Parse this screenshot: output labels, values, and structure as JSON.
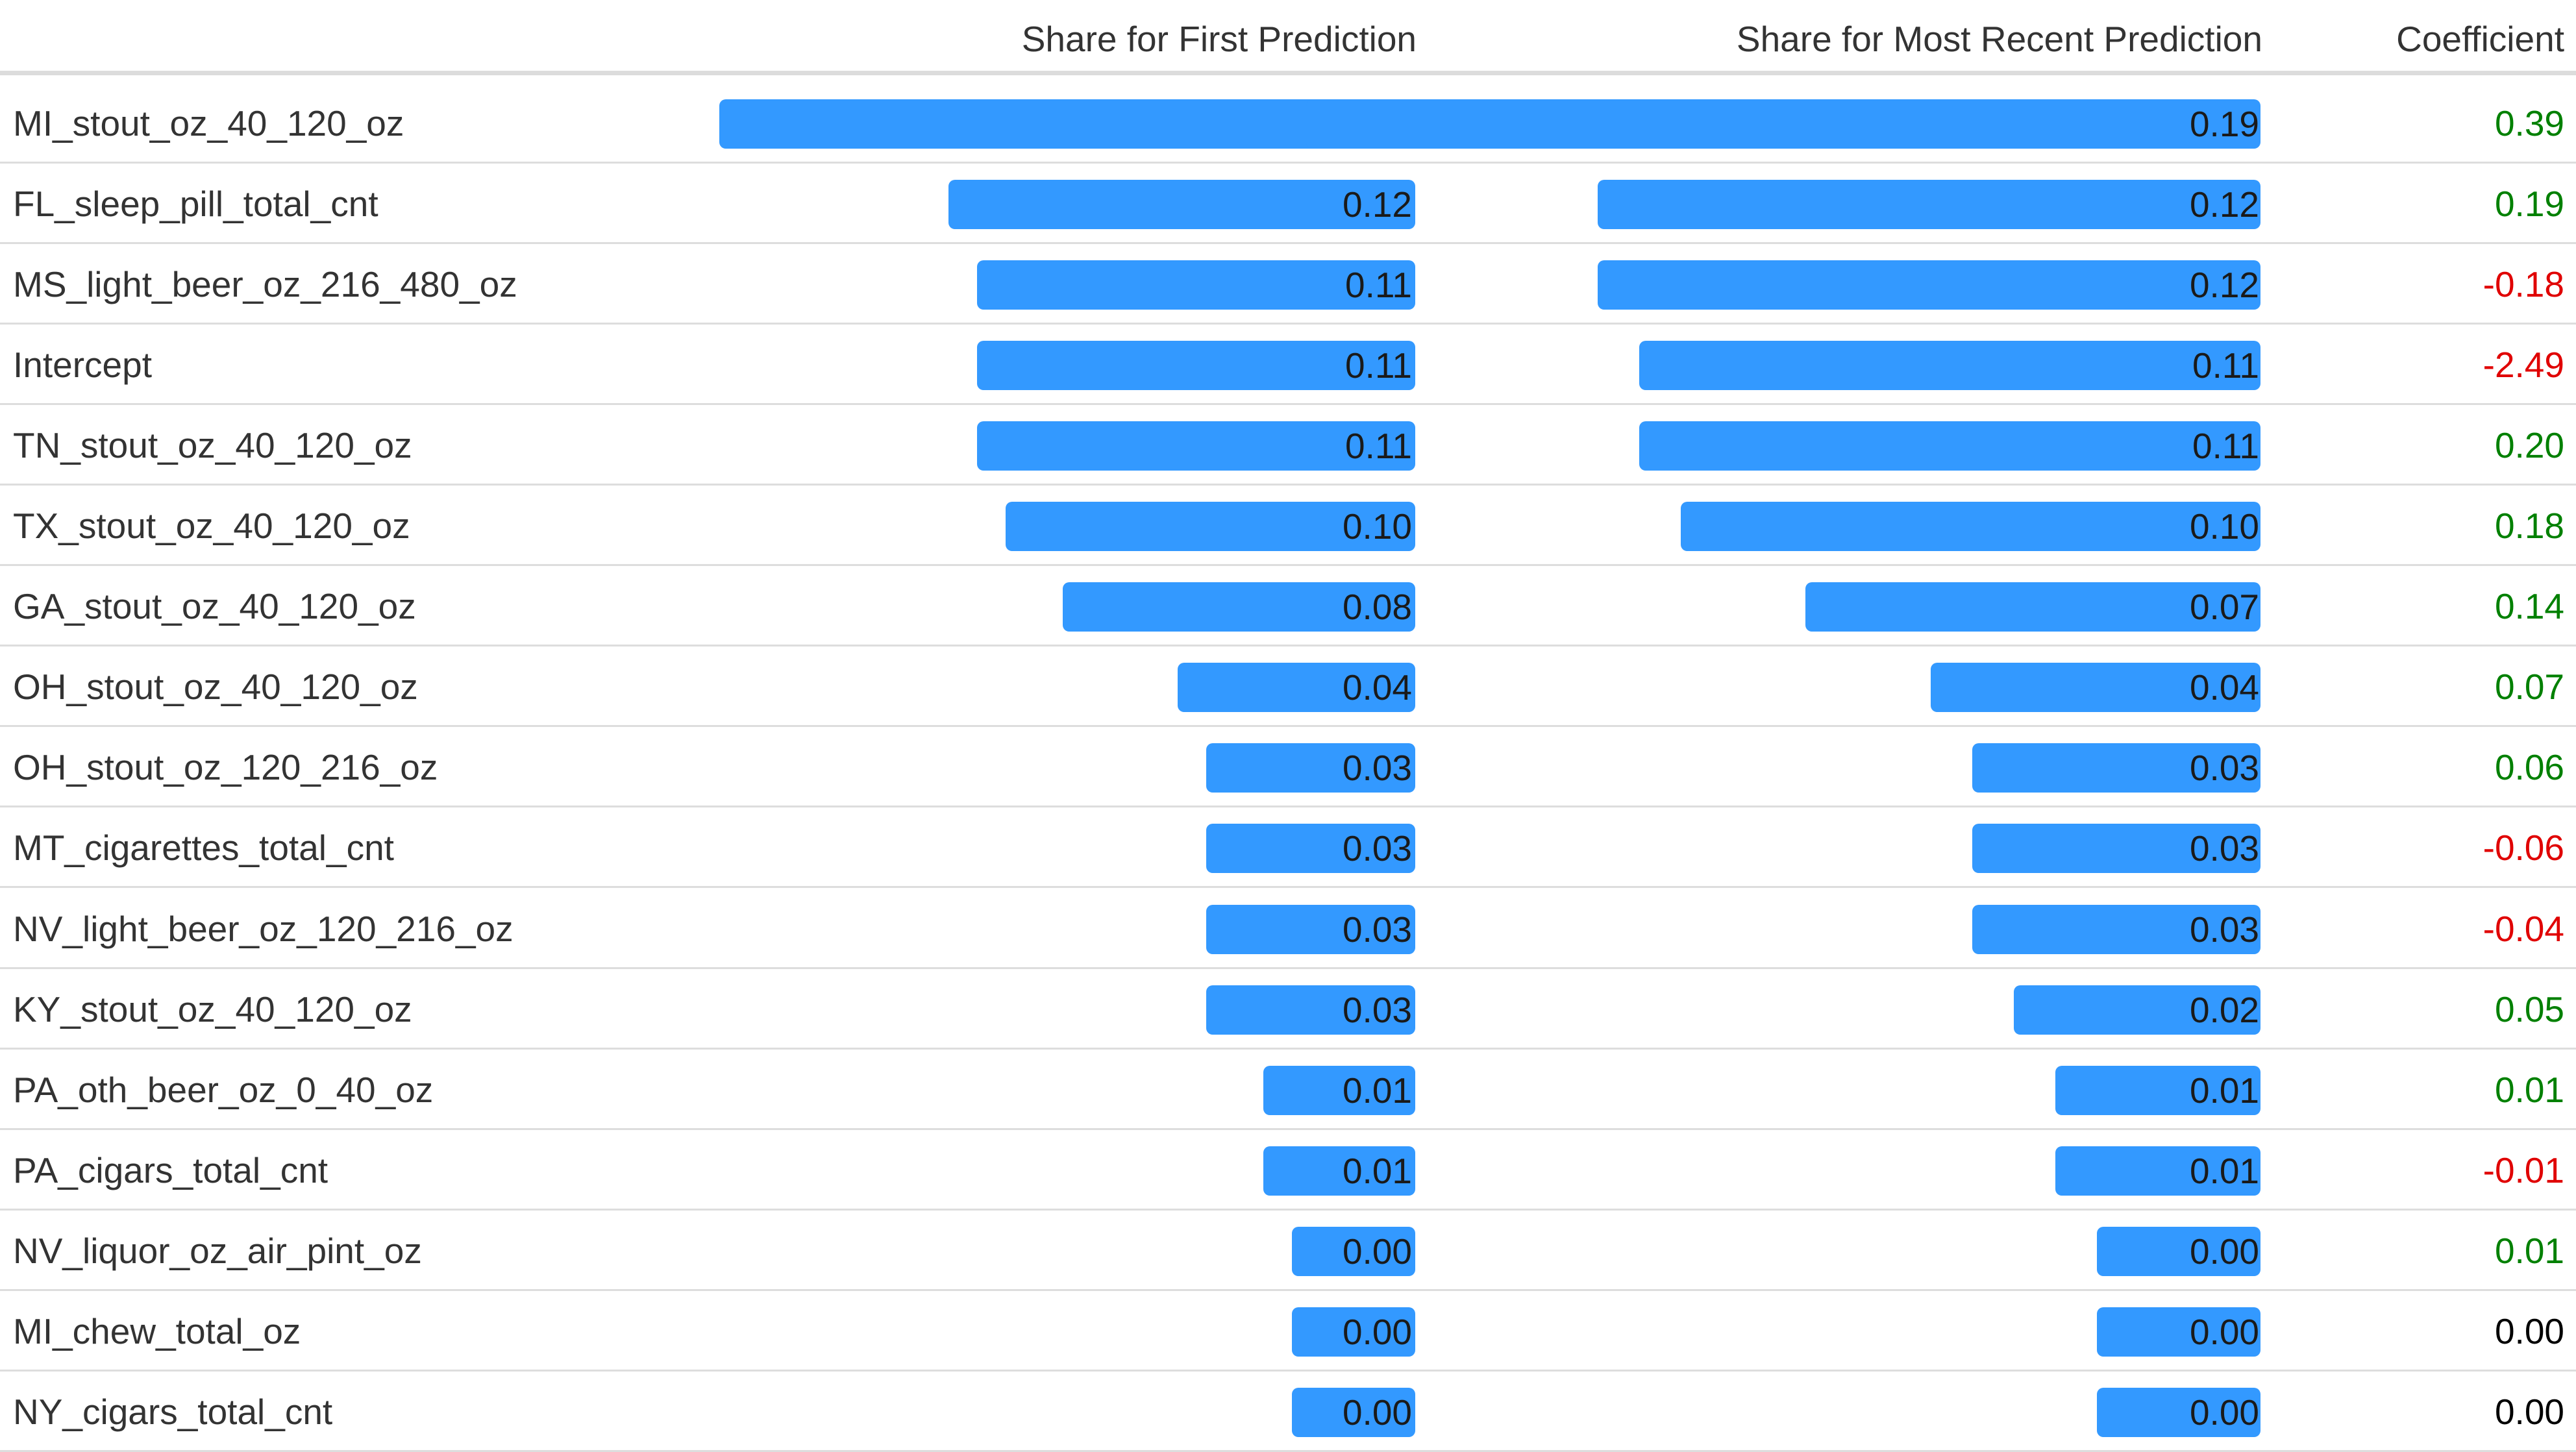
{
  "columns": {
    "first": "Share for First Prediction",
    "recent": "Share for Most Recent Prediction",
    "coefficient": "Coefficient"
  },
  "colors": {
    "bar": "#3399ff",
    "positive": "#008000",
    "negative": "#e00000",
    "neutral": "#000000"
  },
  "rows": [
    {
      "feature": "MI_stout_oz_40_120_oz",
      "first": "0.20",
      "recent": "0.19",
      "coef": "0.39",
      "sign": "positive"
    },
    {
      "feature": "FL_sleep_pill_total_cnt",
      "first": "0.12",
      "recent": "0.12",
      "coef": "0.19",
      "sign": "positive"
    },
    {
      "feature": "MS_light_beer_oz_216_480_oz",
      "first": "0.11",
      "recent": "0.12",
      "coef": "-0.18",
      "sign": "negative"
    },
    {
      "feature": "Intercept",
      "first": "0.11",
      "recent": "0.11",
      "coef": "-2.49",
      "sign": "negative"
    },
    {
      "feature": "TN_stout_oz_40_120_oz",
      "first": "0.11",
      "recent": "0.11",
      "coef": "0.20",
      "sign": "positive"
    },
    {
      "feature": "TX_stout_oz_40_120_oz",
      "first": "0.10",
      "recent": "0.10",
      "coef": "0.18",
      "sign": "positive"
    },
    {
      "feature": "GA_stout_oz_40_120_oz",
      "first": "0.08",
      "recent": "0.07",
      "coef": "0.14",
      "sign": "positive"
    },
    {
      "feature": "OH_stout_oz_40_120_oz",
      "first": "0.04",
      "recent": "0.04",
      "coef": "0.07",
      "sign": "positive"
    },
    {
      "feature": "OH_stout_oz_120_216_oz",
      "first": "0.03",
      "recent": "0.03",
      "coef": "0.06",
      "sign": "positive"
    },
    {
      "feature": "MT_cigarettes_total_cnt",
      "first": "0.03",
      "recent": "0.03",
      "coef": "-0.06",
      "sign": "negative"
    },
    {
      "feature": "NV_light_beer_oz_120_216_oz",
      "first": "0.03",
      "recent": "0.03",
      "coef": "-0.04",
      "sign": "negative"
    },
    {
      "feature": "KY_stout_oz_40_120_oz",
      "first": "0.03",
      "recent": "0.02",
      "coef": "0.05",
      "sign": "positive"
    },
    {
      "feature": "PA_oth_beer_oz_0_40_oz",
      "first": "0.01",
      "recent": "0.01",
      "coef": "0.01",
      "sign": "positive"
    },
    {
      "feature": "PA_cigars_total_cnt",
      "first": "0.01",
      "recent": "0.01",
      "coef": "-0.01",
      "sign": "negative"
    },
    {
      "feature": "NV_liquor_oz_air_pint_oz",
      "first": "0.00",
      "recent": "0.00",
      "coef": "0.01",
      "sign": "positive"
    },
    {
      "feature": "MI_chew_total_oz",
      "first": "0.00",
      "recent": "0.00",
      "coef": "0.00",
      "sign": "neutral"
    },
    {
      "feature": "NY_cigars_total_cnt",
      "first": "0.00",
      "recent": "0.00",
      "coef": "0.00",
      "sign": "neutral"
    }
  ]
}
